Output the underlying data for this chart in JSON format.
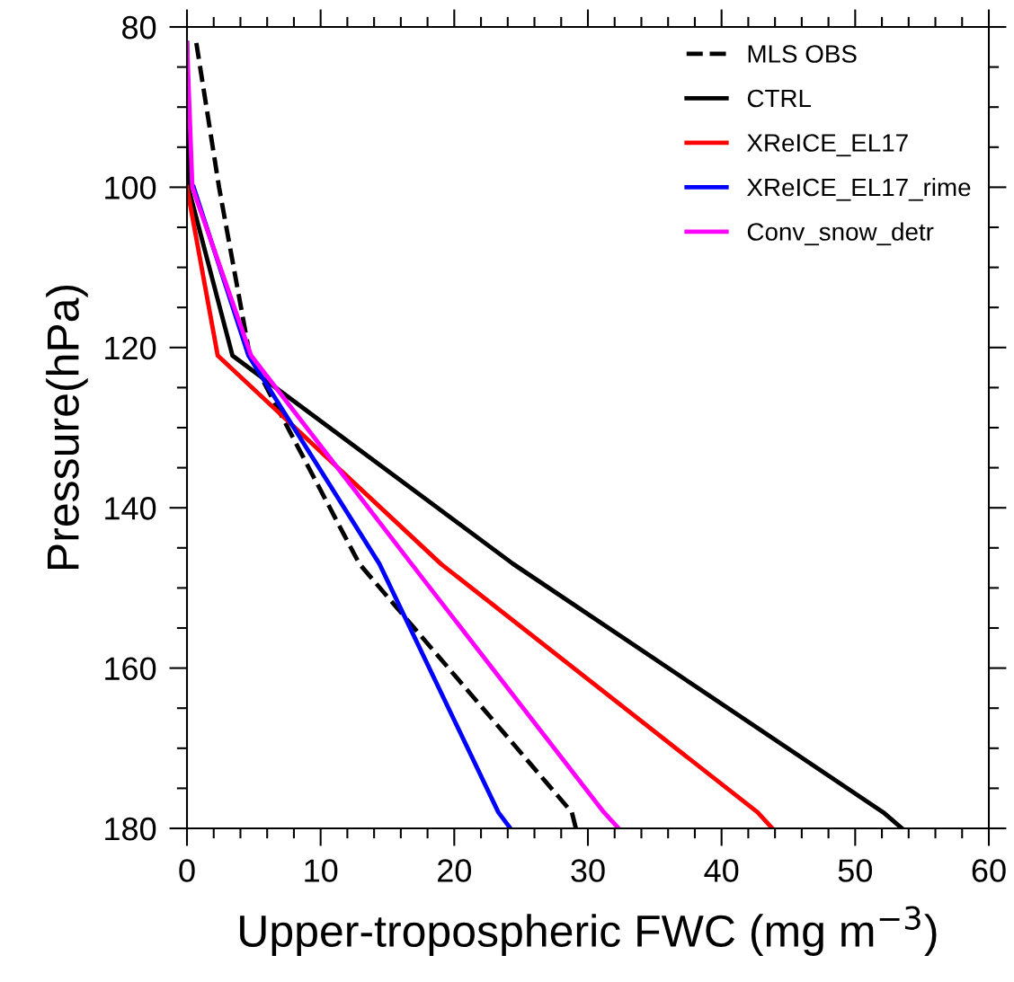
{
  "chart_data": {
    "type": "line",
    "xlabel": "Upper-tropospheric FWC (mg m$^{−3}$)",
    "ylabel": "Pressure(hPa)",
    "xlim": [
      0,
      60
    ],
    "xticks": [
      0,
      10,
      20,
      30,
      40,
      50,
      60
    ],
    "ylim": [
      180,
      80
    ],
    "yticks": [
      80,
      100,
      120,
      140,
      160,
      180
    ],
    "grid": false,
    "legend": "top right",
    "marker": "none",
    "series": [
      {
        "name": "MLS OBS",
        "color": "#000000",
        "line_style": "dashed",
        "x": [
          0.7,
          2.4,
          4.7,
          12.9,
          28.8,
          29.1
        ],
        "values": [
          82,
          100,
          121,
          147,
          178,
          180
        ]
      },
      {
        "name": "CTRL",
        "color": "#000000",
        "line_style": "solid",
        "x": [
          0,
          0.1,
          3.4,
          24.4,
          52.1,
          53.5
        ],
        "values": [
          82,
          100,
          121,
          147,
          178,
          180
        ]
      },
      {
        "name": "XReICE_EL17",
        "color": "#ff0000",
        "line_style": "solid",
        "x": [
          null,
          0,
          2.3,
          19.0,
          42.7,
          43.8
        ],
        "values": [
          null,
          100,
          121,
          147,
          178,
          180
        ]
      },
      {
        "name": "XReICE_EL17_rime",
        "color": "#0000ff",
        "line_style": "solid",
        "x": [
          null,
          0.5,
          4.6,
          14.4,
          23.3,
          24.2
        ],
        "values": [
          null,
          100,
          121,
          147,
          178,
          180
        ]
      },
      {
        "name": "Conv_snow_detr",
        "color": "#ff00ff",
        "line_style": "solid",
        "x": [
          0,
          0.4,
          4.8,
          16.8,
          31.2,
          32.3
        ],
        "values": [
          82,
          100,
          121,
          147,
          178,
          180
        ]
      }
    ]
  }
}
